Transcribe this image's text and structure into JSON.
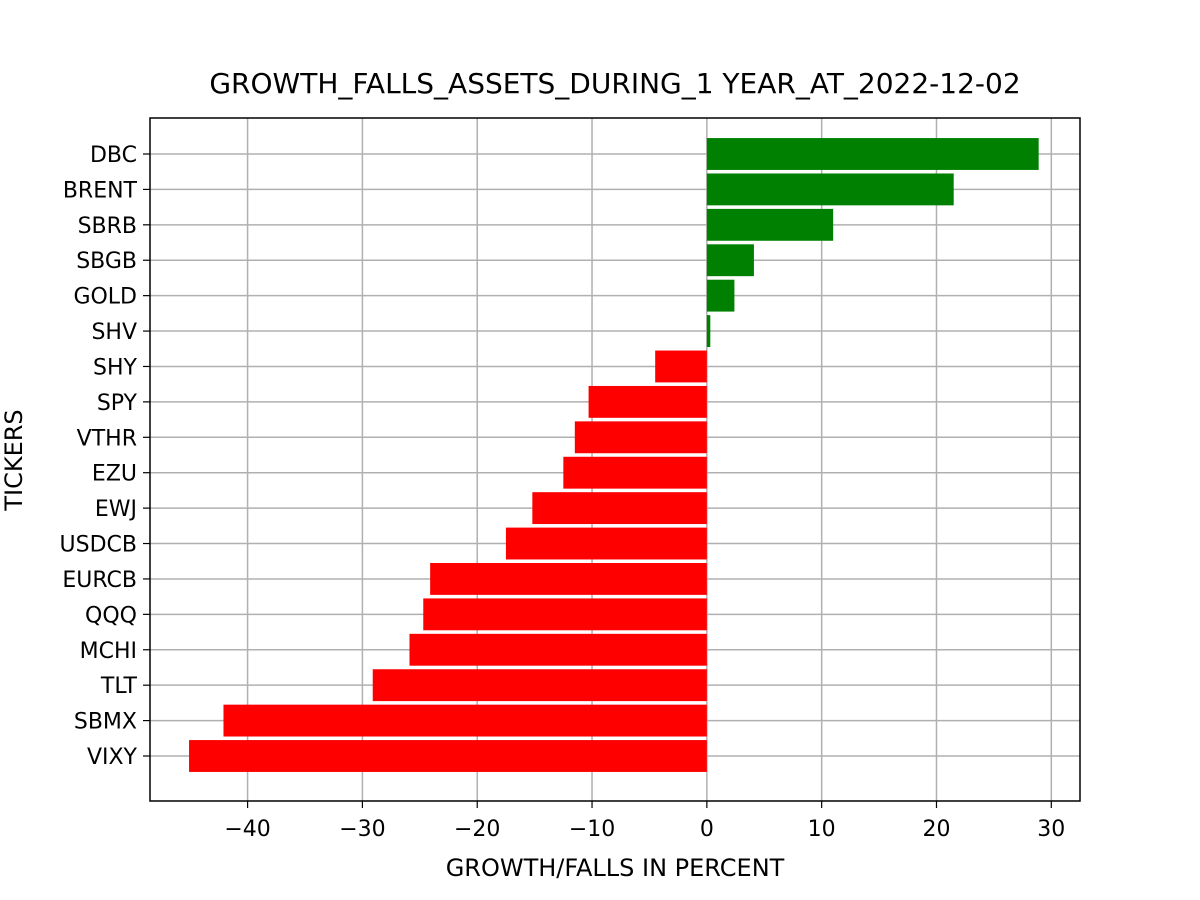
{
  "chart_data": {
    "type": "bar",
    "orientation": "horizontal",
    "title": "GROWTH_FALLS_ASSETS_DURING_1 YEAR_AT_2022-12-02",
    "xlabel": "GROWTH/FALLS IN PERCENT",
    "ylabel": "TICKERS",
    "categories": [
      "DBC",
      "BRENT",
      "SBRB",
      "SBGB",
      "GOLD",
      "SHV",
      "SHY",
      "SPY",
      "VTHR",
      "EZU",
      "EWJ",
      "USDCB",
      "EURCB",
      "QQQ",
      "MCHI",
      "TLT",
      "SBMX",
      "VIXY"
    ],
    "values": [
      28.9,
      21.5,
      11.0,
      4.1,
      2.4,
      0.3,
      -4.5,
      -10.3,
      -11.5,
      -12.5,
      -15.2,
      -17.5,
      -24.1,
      -24.7,
      -25.9,
      -29.1,
      -42.1,
      -45.1
    ],
    "xlim": [
      -48.5,
      32.5
    ],
    "xticks": [
      -40,
      -30,
      -20,
      -10,
      0,
      10,
      20,
      30
    ],
    "xtick_labels": [
      "−40",
      "−30",
      "−20",
      "−10",
      "0",
      "10",
      "20",
      "30"
    ],
    "grid": true,
    "colors": {
      "positive": "#008000",
      "negative": "#ff0000",
      "grid": "#b0b0b0",
      "axes": "#000000"
    }
  }
}
